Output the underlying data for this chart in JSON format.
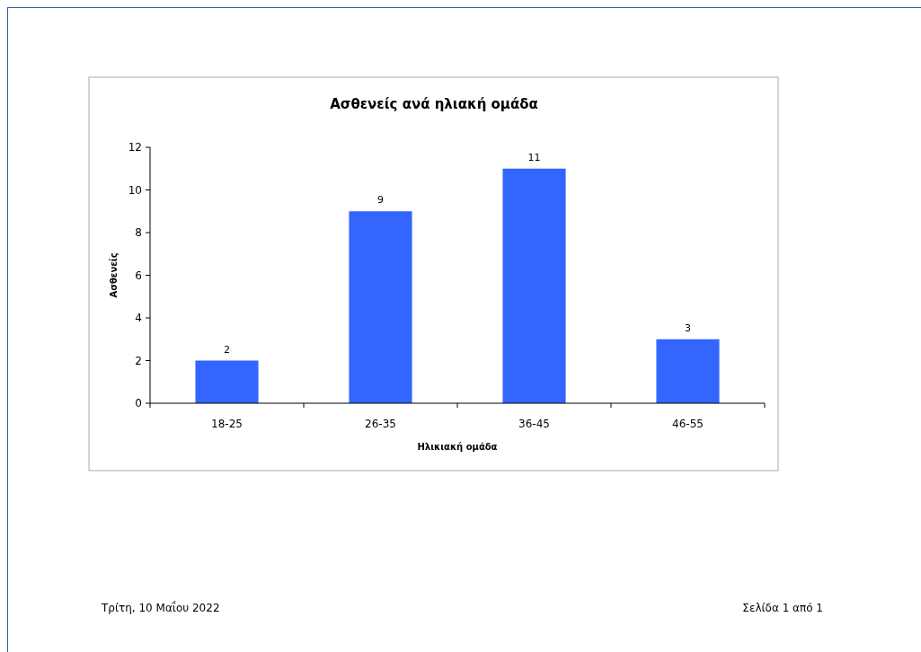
{
  "chart_data": {
    "type": "bar",
    "title": "Ασθενείς ανά ηλιακή ομάδα",
    "xlabel": "Ηλικιακή ομάδα",
    "ylabel": "Ασθενείς",
    "categories": [
      "18-25",
      "26-35",
      "36-45",
      "46-55"
    ],
    "values": [
      2,
      9,
      11,
      3
    ],
    "color": "#3366ff",
    "ylim": [
      0,
      12
    ],
    "yticks": [
      0,
      2,
      4,
      6,
      8,
      10,
      12
    ],
    "data_labels": true,
    "annotations": [
      "Τρίτη, 10 Μαΐου 2022",
      "Σελίδα 1 από 1"
    ]
  }
}
